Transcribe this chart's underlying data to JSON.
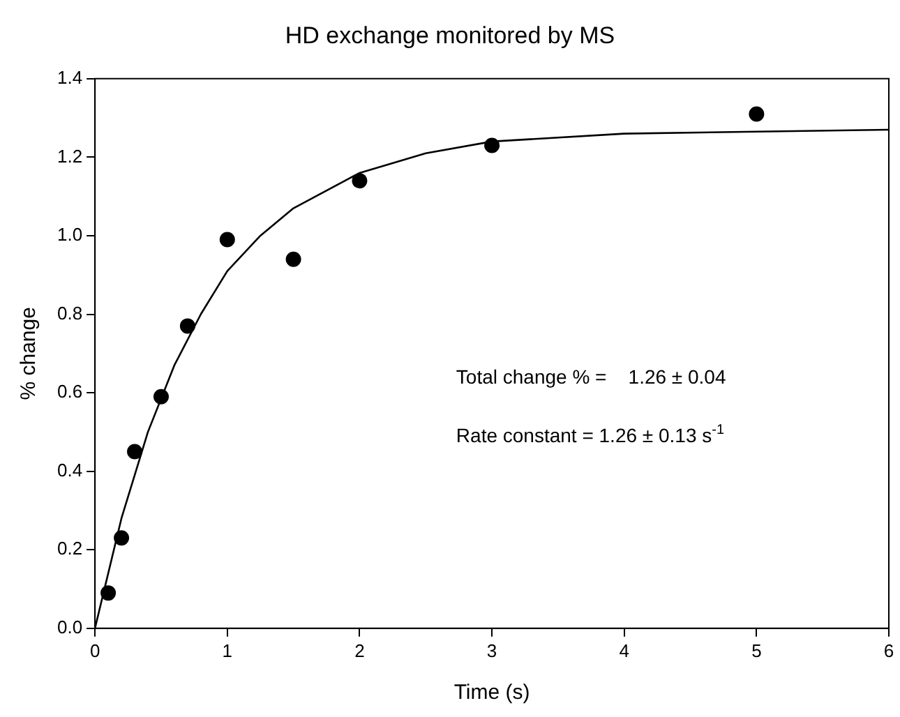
{
  "chart_data": {
    "type": "scatter",
    "title": "HD exchange monitored by MS",
    "xlabel": "Time (s)",
    "ylabel": "% change",
    "xlim": [
      0,
      6
    ],
    "xticks": [
      0,
      1,
      2,
      3,
      4,
      5,
      6
    ],
    "ylim": [
      0,
      1.4
    ],
    "yticks": [
      {
        "value": 0,
        "label": "0.0"
      },
      {
        "value": 0.2,
        "label": "0.2"
      },
      {
        "value": 0.4,
        "label": "0.4"
      },
      {
        "value": 0.6,
        "label": "0.6"
      },
      {
        "value": 0.8,
        "label": "0.8"
      },
      {
        "value": 1,
        "label": "1.0"
      },
      {
        "value": 1.2,
        "label": "1.2"
      },
      {
        "value": 1.4,
        "label": "1.4"
      }
    ],
    "grid": false,
    "legend": false,
    "marker": "circle",
    "annotations": [
      "Total change % =    1.26 ± 0.04",
      "Rate constant = 1.26 ± 0.13 s$^{-1}$"
    ],
    "series": [
      {
        "type": "scatter",
        "color": "#000000",
        "x": [
          0.1,
          0.2,
          0.3,
          0.5,
          0.7,
          1,
          1.5,
          2,
          3,
          5
        ],
        "values": [
          0.09,
          0.23,
          0.45,
          0.59,
          0.77,
          0.99,
          0.94,
          1.14,
          1.23,
          1.31
        ]
      },
      {
        "type": "line",
        "color": "#000000",
        "marker": "none",
        "x": [
          0,
          0.2,
          0.4,
          0.6,
          0.8,
          1,
          1.25,
          1.5,
          2,
          2.5,
          3,
          4,
          5,
          6
        ],
        "values": [
          0,
          0.28,
          0.5,
          0.67,
          0.8,
          0.91,
          1.0,
          1.07,
          1.16,
          1.21,
          1.24,
          1.26,
          1.265,
          1.27
        ]
      }
    ]
  }
}
